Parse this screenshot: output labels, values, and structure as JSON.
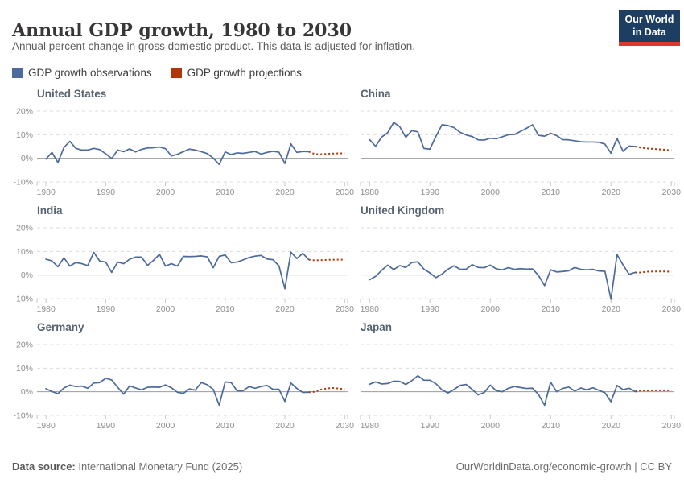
{
  "header": {
    "title": "Annual GDP growth, 1980 to 2030",
    "subtitle": "Annual percent change in gross domestic product. This data is adjusted for inflation.",
    "logo": {
      "line1": "Our World",
      "line2": "in Data",
      "bg_color": "#1d3d63",
      "accent_color": "#e0362c"
    }
  },
  "legend": [
    {
      "label": "GDP growth observations",
      "color": "#4C6A9C"
    },
    {
      "label": "GDP growth projections",
      "color": "#B13507"
    }
  ],
  "footer": {
    "source_label": "Data source:",
    "source_value": "International Monetary Fund (2025)",
    "right_text": "OurWorldinData.org/economic-growth | CC BY"
  },
  "chart_layout": {
    "ylim": [
      -10,
      20
    ],
    "xlim": [
      1978.5,
      2030.5
    ],
    "grid": "dashed horizontal at 20, 10, -10; solid at 0",
    "legend_position": "top-left"
  },
  "chart_data": [
    {
      "type": "line",
      "title": "United States",
      "x_start_year": 1980,
      "xticks": [
        1980,
        1990,
        2000,
        2010,
        2020,
        2030
      ],
      "yticks": [
        "20%",
        "10%",
        "0%",
        "-10%"
      ],
      "show_y_labels": true,
      "observations": [
        -0.3,
        2.5,
        -1.8,
        4.6,
        7.2,
        4.2,
        3.5,
        3.5,
        4.2,
        3.7,
        1.9,
        -0.1,
        3.5,
        2.8,
        4.0,
        2.7,
        3.8,
        4.4,
        4.5,
        4.8,
        4.1,
        1.0,
        1.7,
        2.8,
        3.9,
        3.5,
        2.8,
        2.0,
        0.1,
        -2.6,
        2.7,
        1.6,
        2.3,
        2.1,
        2.5,
        2.9,
        1.8,
        2.5,
        3.0,
        2.6,
        -2.2,
        6.1,
        2.5,
        2.9,
        2.8
      ],
      "projection_start_year": 2025,
      "projections": [
        1.8,
        1.7,
        1.9,
        2.0,
        2.1,
        2.1
      ]
    },
    {
      "type": "line",
      "title": "China",
      "x_start_year": 1980,
      "xticks": [
        1980,
        1990,
        2000,
        2010,
        2020,
        2030
      ],
      "yticks": [
        "20%",
        "10%",
        "0%",
        "-10%"
      ],
      "show_y_labels": false,
      "observations": [
        7.9,
        5.1,
        9.0,
        10.8,
        15.2,
        13.4,
        8.9,
        11.7,
        11.2,
        4.2,
        3.9,
        9.3,
        14.2,
        13.9,
        13.0,
        11.0,
        9.9,
        9.2,
        7.8,
        7.7,
        8.5,
        8.3,
        9.1,
        10.0,
        10.1,
        11.4,
        12.7,
        14.2,
        9.7,
        9.4,
        10.6,
        9.6,
        7.9,
        7.8,
        7.4,
        7.0,
        6.9,
        6.9,
        6.8,
        6.0,
        2.2,
        8.4,
        3.0,
        5.2,
        5.0
      ],
      "projection_start_year": 2025,
      "projections": [
        4.5,
        4.2,
        4.0,
        3.8,
        3.6,
        3.4
      ]
    },
    {
      "type": "line",
      "title": "India",
      "x_start_year": 1980,
      "xticks": [
        1980,
        1990,
        2000,
        2010,
        2020,
        2030
      ],
      "yticks": [
        "20%",
        "10%",
        "0%",
        "-10%"
      ],
      "show_y_labels": true,
      "observations": [
        6.7,
        6.0,
        3.5,
        7.3,
        3.8,
        5.3,
        4.8,
        4.0,
        9.6,
        5.9,
        5.5,
        1.1,
        5.5,
        4.8,
        6.7,
        7.6,
        7.6,
        4.1,
        6.2,
        8.8,
        3.8,
        4.8,
        3.8,
        7.9,
        7.8,
        7.9,
        8.1,
        7.7,
        3.1,
        7.9,
        8.5,
        5.2,
        5.5,
        6.4,
        7.4,
        8.0,
        8.3,
        6.8,
        6.5,
        3.9,
        -5.8,
        9.7,
        7.0,
        9.2,
        6.5
      ],
      "projection_start_year": 2025,
      "projections": [
        6.2,
        6.3,
        6.4,
        6.5,
        6.5,
        6.5
      ]
    },
    {
      "type": "line",
      "title": "United Kingdom",
      "x_start_year": 1980,
      "xticks": [
        1980,
        1990,
        2000,
        2010,
        2020,
        2030
      ],
      "yticks": [
        "20%",
        "10%",
        "0%",
        "-10%"
      ],
      "show_y_labels": false,
      "observations": [
        -2.0,
        -0.6,
        2.0,
        4.2,
        2.3,
        4.0,
        3.2,
        5.3,
        5.6,
        2.5,
        0.9,
        -1.1,
        0.4,
        2.5,
        3.9,
        2.4,
        2.5,
        4.4,
        3.2,
        3.1,
        4.2,
        2.6,
        2.2,
        3.1,
        2.4,
        2.7,
        2.5,
        2.6,
        -0.2,
        -4.5,
        2.2,
        1.3,
        1.5,
        1.8,
        3.2,
        2.4,
        2.2,
        2.4,
        1.7,
        1.6,
        -10.3,
        8.7,
        4.3,
        0.3,
        1.1
      ],
      "projection_start_year": 2025,
      "projections": [
        1.1,
        1.4,
        1.5,
        1.5,
        1.5,
        1.4
      ]
    },
    {
      "type": "line",
      "title": "Germany",
      "x_start_year": 1980,
      "xticks": [
        1980,
        1990,
        2000,
        2010,
        2020,
        2030
      ],
      "yticks": [
        "20%",
        "10%",
        "0%",
        "-10%"
      ],
      "show_y_labels": true,
      "observations": [
        1.3,
        0.1,
        -0.8,
        1.6,
        2.8,
        2.2,
        2.4,
        1.5,
        3.7,
        3.9,
        5.7,
        5.0,
        1.9,
        -1.0,
        2.5,
        1.6,
        0.8,
        1.9,
        2.0,
        1.9,
        2.9,
        1.7,
        -0.2,
        -0.7,
        1.2,
        0.7,
        3.9,
        3.0,
        1.0,
        -5.7,
        4.2,
        3.9,
        0.4,
        0.4,
        2.2,
        1.5,
        2.2,
        2.7,
        1.0,
        1.1,
        -4.1,
        3.7,
        1.4,
        -0.3,
        -0.2
      ],
      "projection_start_year": 2025,
      "projections": [
        0.0,
        0.9,
        1.4,
        1.6,
        1.4,
        1.1
      ]
    },
    {
      "type": "line",
      "title": "Japan",
      "x_start_year": 1980,
      "xticks": [
        1980,
        1990,
        2000,
        2010,
        2020,
        2030
      ],
      "yticks": [
        "20%",
        "10%",
        "0%",
        "-10%"
      ],
      "show_y_labels": false,
      "observations": [
        3.2,
        4.2,
        3.3,
        3.5,
        4.5,
        4.4,
        3.1,
        4.7,
        6.8,
        4.9,
        4.9,
        3.4,
        0.8,
        -0.5,
        1.0,
        2.7,
        3.1,
        1.0,
        -1.3,
        -0.3,
        2.8,
        0.4,
        0.0,
        1.5,
        2.2,
        1.8,
        1.4,
        1.5,
        -1.2,
        -5.7,
        4.1,
        0.0,
        1.4,
        2.0,
        0.3,
        1.6,
        0.8,
        1.7,
        0.6,
        -0.4,
        -4.2,
        2.7,
        0.9,
        1.5,
        0.1
      ],
      "projection_start_year": 2025,
      "projections": [
        0.6,
        0.5,
        0.6,
        0.6,
        0.6,
        0.6
      ]
    }
  ]
}
